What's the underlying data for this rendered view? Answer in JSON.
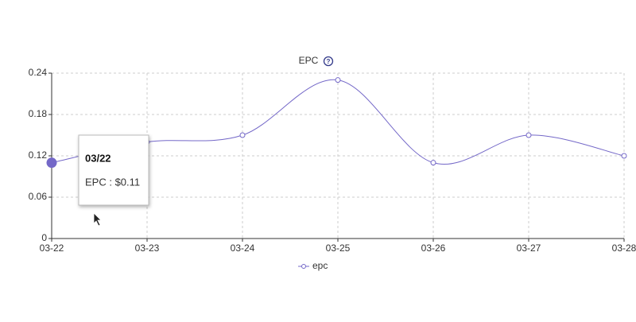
{
  "chart_data": {
    "type": "line",
    "title": "EPC",
    "categories": [
      "03-22",
      "03-23",
      "03-24",
      "03-25",
      "03-26",
      "03-27",
      "03-28"
    ],
    "series": [
      {
        "name": "epc",
        "color": "#7468c8",
        "values": [
          0.11,
          0.14,
          0.15,
          0.23,
          0.11,
          0.15,
          0.12
        ]
      }
    ],
    "ylim": [
      0,
      0.24
    ],
    "yticks": [
      0,
      0.06,
      0.12,
      0.18,
      0.24
    ],
    "grid": true,
    "legend": "bottom",
    "tooltip": {
      "title": "03/22",
      "text": "EPC : $0.11"
    }
  }
}
